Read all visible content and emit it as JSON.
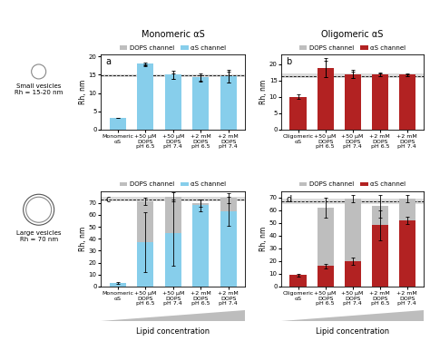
{
  "figure": {
    "row_labels": [
      "Small vesicles\nRh = 15-20 nm",
      "Large vesicles\nRh = 70 nm"
    ],
    "footer": "Lipid concentration"
  },
  "chart_data": [
    {
      "type": "bar",
      "panel": "a",
      "title": "Monomeric αS",
      "ylabel": "Rh, nm",
      "categories": [
        "Monomeric\nαS",
        "+50 μM\nDOPS\npH 6.5",
        "+50 μM\nDOPS\npH 7.4",
        "+2 mM\nDOPS\npH 6.5",
        "+2 mM\nDOPS\npH 7.4"
      ],
      "series": [
        {
          "name": "DOPS channel",
          "color": "#bebebe",
          "values": [
            null,
            17.6,
            14.6,
            14.0,
            14.4
          ],
          "errors": [
            null,
            0.3,
            0.8,
            0.8,
            1.5
          ]
        },
        {
          "name": "αS channel",
          "color": "#87ceeb",
          "values": [
            3.2,
            18.0,
            15.0,
            14.3,
            14.6
          ],
          "errors": [
            0.1,
            0.4,
            1.2,
            1.0,
            1.8
          ]
        }
      ],
      "reference_line": 14.8,
      "reference_band": [
        14.4,
        15.2
      ],
      "ylim": [
        0,
        20.5
      ],
      "yticks": [
        0,
        5,
        10,
        15,
        20
      ],
      "legend": "top"
    },
    {
      "type": "bar",
      "panel": "b",
      "title": "Oligomeric αS",
      "ylabel": "Rh, nm",
      "categories": [
        "Oligomeric\nαS",
        "+50 μM\nDOPS\npH 6.5",
        "+50 μM\nDOPS\npH 7.4",
        "+2 mM\nDOPS\npH 6.5",
        "+2 mM\nDOPS\npH 7.4"
      ],
      "series": [
        {
          "name": "DOPS channel",
          "color": "#bebebe",
          "values": [
            null,
            18.5,
            16.8,
            16.8,
            16.7
          ],
          "errors": [
            null,
            2.5,
            1.0,
            0.4,
            0.3
          ]
        },
        {
          "name": "αS channel",
          "color": "#b22222",
          "values": [
            10.1,
            19.0,
            17.0,
            16.9,
            16.8
          ],
          "errors": [
            0.8,
            3.0,
            1.2,
            0.5,
            0.3
          ]
        }
      ],
      "reference_line": 16.5,
      "reference_band": [
        15.8,
        17.2
      ],
      "ylim": [
        0,
        23
      ],
      "yticks": [
        0,
        5,
        10,
        15,
        20
      ],
      "legend": "top"
    },
    {
      "type": "bar",
      "panel": "c",
      "ylabel": "Rh, nm",
      "categories": [
        "Monomeric\nαS",
        "+50 μM\nDOPS\npH 6.5",
        "+50 μM\nDOPS\npH 7.4",
        "+2 mM\nDOPS\npH 6.5",
        "+2 mM\nDOPS\npH 7.4"
      ],
      "series": [
        {
          "name": "DOPS channel",
          "color": "#bebebe",
          "values": [
            null,
            71,
            75,
            70,
            74
          ],
          "errors": [
            null,
            3,
            4,
            3,
            4
          ]
        },
        {
          "name": "αS channel",
          "color": "#87ceeb",
          "values": [
            3.0,
            37,
            45,
            68,
            63
          ],
          "errors": [
            0.5,
            25,
            28,
            5,
            12
          ]
        }
      ],
      "reference_line": 73,
      "reference_band": [
        71,
        75
      ],
      "ylim": [
        0,
        80
      ],
      "yticks": [
        0,
        10,
        20,
        30,
        40,
        50,
        60,
        70
      ],
      "legend": "top"
    },
    {
      "type": "bar",
      "panel": "d",
      "ylabel": "Rh, nm",
      "categories": [
        "Oligomeric\nαS",
        "+50 μM\nDOPS\npH 6.5",
        "+50 μM\nDOPS\npH 7.4",
        "+2 mM\nDOPS\npH 6.5",
        "+2 mM\nDOPS\npH 7.4"
      ],
      "series": [
        {
          "name": "DOPS channel",
          "color": "#bebebe",
          "values": [
            null,
            62,
            69,
            63,
            69
          ],
          "errors": [
            null,
            8,
            3,
            9,
            3
          ]
        },
        {
          "name": "αS channel",
          "color": "#b22222",
          "values": [
            9,
            16,
            20,
            48,
            52
          ],
          "errors": [
            1,
            2,
            3,
            12,
            3
          ]
        }
      ],
      "reference_line": 67,
      "reference_band": [
        65,
        69
      ],
      "ylim": [
        0,
        75
      ],
      "yticks": [
        0,
        10,
        20,
        30,
        40,
        50,
        60,
        70
      ],
      "legend": "top"
    }
  ]
}
